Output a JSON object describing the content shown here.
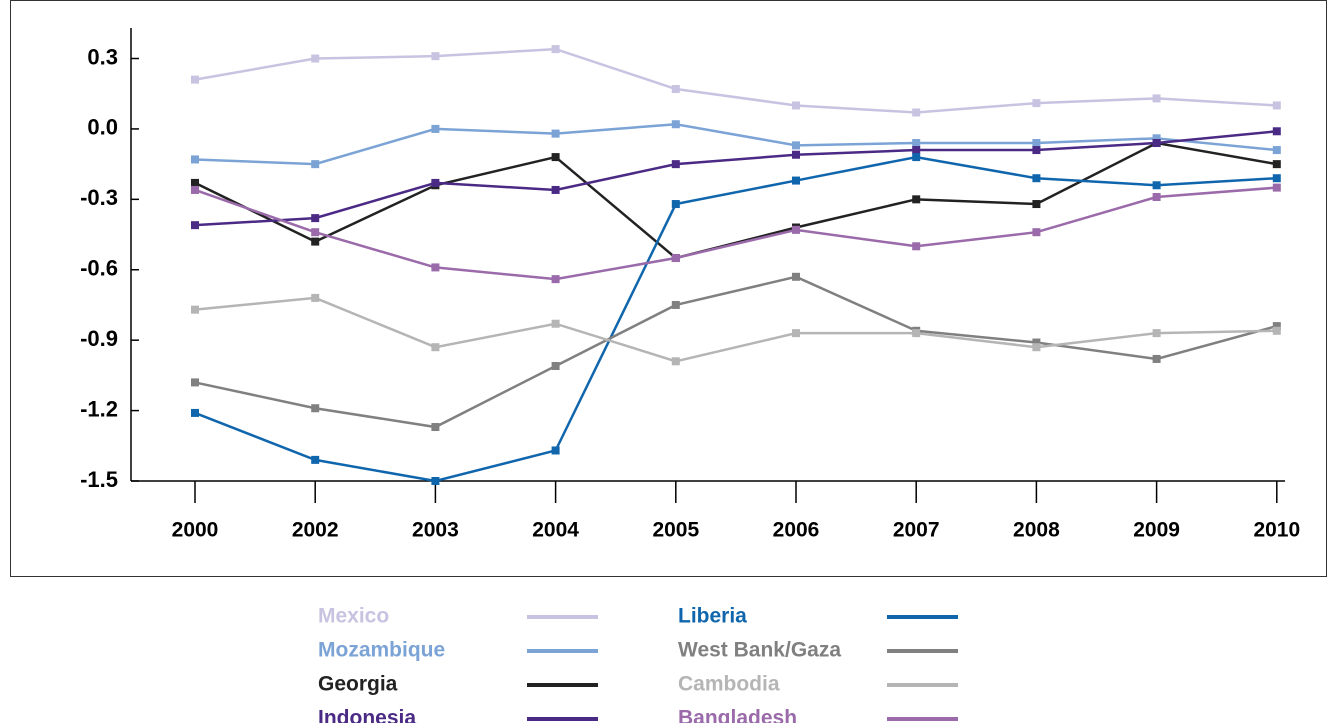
{
  "chart_data": {
    "type": "line",
    "categories": [
      "2000",
      "2002",
      "2003",
      "2004",
      "2005",
      "2006",
      "2007",
      "2008",
      "2009",
      "2010"
    ],
    "ylim": [
      -1.5,
      0.43
    ],
    "yticks": [
      0.3,
      {
        "value": 0,
        "label": "0.0"
      },
      -0.3,
      -0.6,
      -0.9,
      -1.2,
      -1.5
    ],
    "series": [
      {
        "name": "Mexico",
        "color": "#c8c3e0",
        "values": [
          0.21,
          0.3,
          0.31,
          0.34,
          0.17,
          0.1,
          0.07,
          0.11,
          0.13,
          0.1
        ]
      },
      {
        "name": "Mozambique",
        "color": "#7ba3d6",
        "values": [
          -0.13,
          -0.15,
          0.0,
          -0.02,
          0.02,
          -0.07,
          -0.06,
          -0.06,
          -0.04,
          -0.09
        ]
      },
      {
        "name": "Georgia",
        "color": "#222222",
        "values": [
          -0.23,
          -0.48,
          -0.24,
          -0.12,
          -0.55,
          -0.42,
          -0.3,
          -0.32,
          -0.06,
          -0.15
        ]
      },
      {
        "name": "Indonesia",
        "color": "#4b2a85",
        "values": [
          -0.41,
          -0.38,
          -0.23,
          -0.26,
          -0.15,
          -0.11,
          -0.09,
          -0.09,
          -0.06,
          -0.01
        ]
      },
      {
        "name": "Liberia",
        "color": "#1066ad",
        "values": [
          -1.21,
          -1.41,
          -1.5,
          -1.37,
          -0.32,
          -0.22,
          -0.12,
          -0.21,
          -0.24,
          -0.21
        ]
      },
      {
        "name": "West Bank/Gaza",
        "color": "#808080",
        "values": [
          -1.08,
          -1.19,
          -1.27,
          -1.01,
          -0.75,
          -0.63,
          -0.86,
          -0.91,
          -0.98,
          -0.84
        ]
      },
      {
        "name": "Cambodia",
        "color": "#b5b5b5",
        "values": [
          -0.77,
          -0.72,
          -0.93,
          -0.83,
          -0.99,
          -0.87,
          -0.87,
          -0.93,
          -0.87,
          -0.86
        ]
      },
      {
        "name": "Bangladesh",
        "color": "#9a6aaa",
        "values": [
          -0.26,
          -0.44,
          -0.59,
          -0.64,
          -0.55,
          -0.43,
          -0.5,
          -0.44,
          -0.29,
          -0.25
        ]
      }
    ]
  }
}
